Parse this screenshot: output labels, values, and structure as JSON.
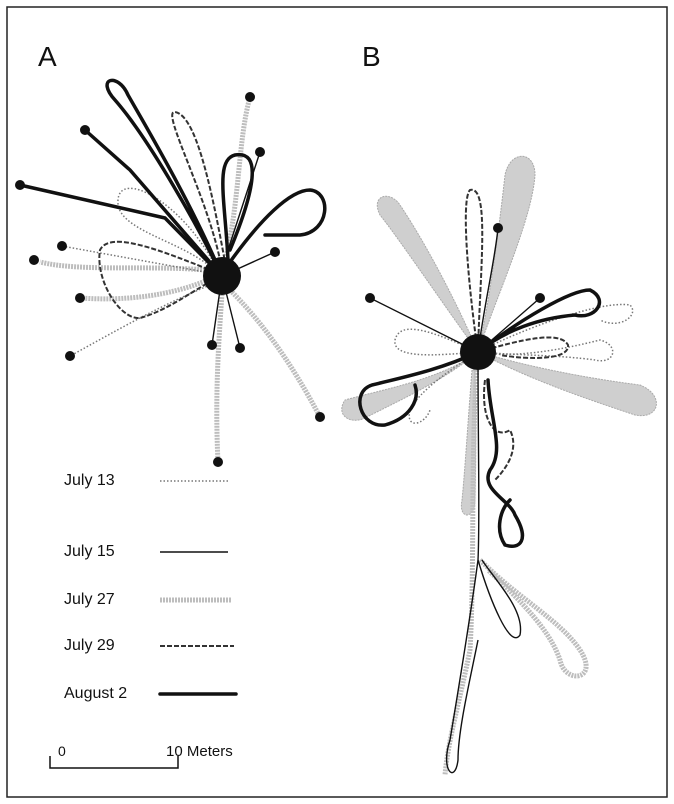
{
  "panels": [
    {
      "label": "A"
    },
    {
      "label": "B"
    }
  ],
  "legend": [
    {
      "label": "July 13"
    },
    {
      "label": "July 15"
    },
    {
      "label": "July 27"
    },
    {
      "label": "July 29"
    },
    {
      "label": "August 2"
    }
  ],
  "scale_bar": {
    "start": "0",
    "end": "10 Meters"
  }
}
